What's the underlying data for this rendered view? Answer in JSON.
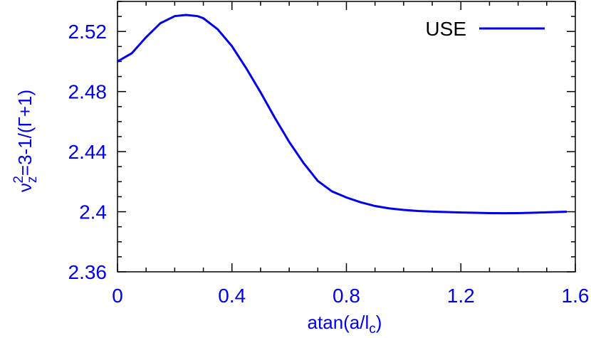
{
  "chart_data": {
    "type": "line",
    "title": "",
    "xlabel": {
      "base": "atan(a/l",
      "sub": "c",
      "tail": ")"
    },
    "ylabel": {
      "base": "ν",
      "sub": "z",
      "sup": "2",
      "tail": "=3-1/(Γ+1)"
    },
    "xlim": [
      0,
      1.6
    ],
    "ylim": [
      2.36,
      2.54
    ],
    "xticks": [
      0,
      0.4,
      0.8,
      1.2,
      1.6
    ],
    "xtick_labels": [
      "0",
      "0.4",
      "0.8",
      "1.2",
      "1.6"
    ],
    "yticks": [
      2.36,
      2.4,
      2.44,
      2.48,
      2.52
    ],
    "ytick_labels": [
      "2.36",
      "2.4",
      "2.44",
      "2.48",
      "2.52"
    ],
    "grid": false,
    "legend": {
      "position": "top-right"
    },
    "colors": {
      "line": "#0000ee",
      "axes": "#000000",
      "text": "#0000ee"
    },
    "series": [
      {
        "name": "USE",
        "x": [
          0,
          0.05,
          0.1,
          0.15,
          0.2,
          0.24,
          0.28,
          0.3,
          0.35,
          0.4,
          0.45,
          0.5,
          0.55,
          0.6,
          0.65,
          0.7,
          0.75,
          0.8,
          0.85,
          0.9,
          0.95,
          1.0,
          1.05,
          1.1,
          1.15,
          1.2,
          1.25,
          1.3,
          1.35,
          1.4,
          1.45,
          1.5,
          1.57
        ],
        "y": [
          2.5,
          2.5055,
          2.5162,
          2.5255,
          2.5302,
          2.531,
          2.5302,
          2.5288,
          2.5215,
          2.5102,
          2.4955,
          2.4795,
          2.4625,
          2.4465,
          2.4325,
          2.4205,
          2.4135,
          2.4095,
          2.4063,
          2.4038,
          2.4022,
          2.4012,
          2.4005,
          2.4001,
          2.3998,
          2.3995,
          2.3993,
          2.3991,
          2.399,
          2.3991,
          2.3993,
          2.3996,
          2.4
        ]
      }
    ]
  }
}
